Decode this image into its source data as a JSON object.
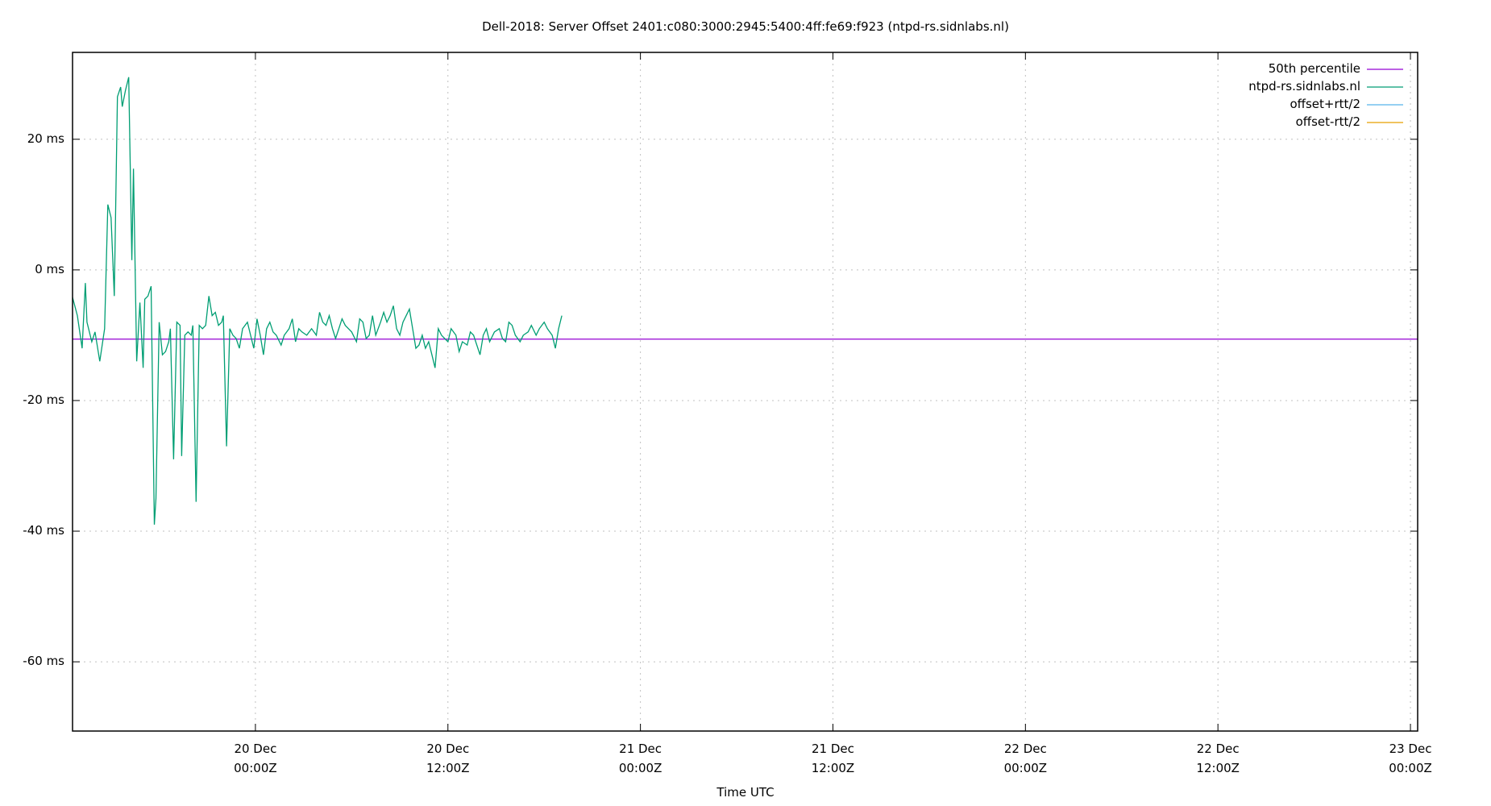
{
  "chart_data": {
    "type": "line",
    "title": "Dell-2018: Server Offset 2401:c080:3000:2945:5400:4ff:fe69:f923 (ntpd-rs.sidnlabs.nl)",
    "xlabel": "Time UTC",
    "ylabel": "",
    "ylim": [
      -70.6,
      33.3
    ],
    "xlim_hours_from_20dec0000": [
      -11.4,
      72.45
    ],
    "grid": true,
    "legend_position": "top-right",
    "yticks": [
      {
        "value": 20,
        "label": "20 ms"
      },
      {
        "value": 0,
        "label": "0 ms"
      },
      {
        "value": -20,
        "label": "-20 ms"
      },
      {
        "value": -40,
        "label": "-40 ms"
      },
      {
        "value": -60,
        "label": "-60 ms"
      }
    ],
    "xticks": [
      {
        "hours": 0,
        "line1": "20 Dec",
        "line2": "00:00Z"
      },
      {
        "hours": 12,
        "line1": "20 Dec",
        "line2": "12:00Z"
      },
      {
        "hours": 24,
        "line1": "21 Dec",
        "line2": "00:00Z"
      },
      {
        "hours": 36,
        "line1": "21 Dec",
        "line2": "12:00Z"
      },
      {
        "hours": 48,
        "line1": "22 Dec",
        "line2": "00:00Z"
      },
      {
        "hours": 60,
        "line1": "22 Dec",
        "line2": "12:00Z"
      },
      {
        "hours": 72,
        "line1": "23 Dec",
        "line2": "00:00Z"
      }
    ],
    "series": [
      {
        "name": "50th percentile",
        "color": "#9400d3",
        "constant": -10.6
      },
      {
        "name": "ntpd-rs.sidnlabs.nl",
        "color": "#009e73",
        "points": [
          [
            -11.4,
            -4.2
          ],
          [
            -11.1,
            -7
          ],
          [
            -10.8,
            -12
          ],
          [
            -10.6,
            -2
          ],
          [
            -10.5,
            -8
          ],
          [
            -10.2,
            -11
          ],
          [
            -10.0,
            -9.5
          ],
          [
            -9.7,
            -14
          ],
          [
            -9.4,
            -9
          ],
          [
            -9.2,
            10
          ],
          [
            -9.0,
            8
          ],
          [
            -8.8,
            -4
          ],
          [
            -8.6,
            26.5
          ],
          [
            -8.4,
            28
          ],
          [
            -8.3,
            25
          ],
          [
            -8.1,
            27.5
          ],
          [
            -7.9,
            29.5
          ],
          [
            -7.7,
            1.5
          ],
          [
            -7.6,
            15.5
          ],
          [
            -7.4,
            -14
          ],
          [
            -7.2,
            -5
          ],
          [
            -7.0,
            -15
          ],
          [
            -6.9,
            -4.5
          ],
          [
            -6.7,
            -4
          ],
          [
            -6.5,
            -2.5
          ],
          [
            -6.3,
            -39
          ],
          [
            -6.2,
            -35
          ],
          [
            -6.0,
            -8
          ],
          [
            -5.8,
            -13
          ],
          [
            -5.6,
            -12.5
          ],
          [
            -5.4,
            -11
          ],
          [
            -5.3,
            -9
          ],
          [
            -5.1,
            -29
          ],
          [
            -4.9,
            -8
          ],
          [
            -4.7,
            -8.5
          ],
          [
            -4.6,
            -28.5
          ],
          [
            -4.4,
            -10
          ],
          [
            -4.2,
            -9.5
          ],
          [
            -4.0,
            -10
          ],
          [
            -3.9,
            -8.5
          ],
          [
            -3.7,
            -35.5
          ],
          [
            -3.5,
            -8.5
          ],
          [
            -3.3,
            -9
          ],
          [
            -3.1,
            -8.5
          ],
          [
            -2.9,
            -4
          ],
          [
            -2.7,
            -7
          ],
          [
            -2.5,
            -6.5
          ],
          [
            -2.3,
            -8.5
          ],
          [
            -2.1,
            -8
          ],
          [
            -2.0,
            -7
          ],
          [
            -1.8,
            -27
          ],
          [
            -1.6,
            -9
          ],
          [
            -1.4,
            -10
          ],
          [
            -1.2,
            -10.5
          ],
          [
            -1.0,
            -12
          ],
          [
            -0.8,
            -9
          ],
          [
            -0.5,
            -8
          ],
          [
            -0.3,
            -10
          ],
          [
            -0.1,
            -12
          ],
          [
            0.1,
            -7.5
          ],
          [
            0.3,
            -10
          ],
          [
            0.5,
            -13
          ],
          [
            0.7,
            -9
          ],
          [
            0.9,
            -8
          ],
          [
            1.1,
            -9.5
          ],
          [
            1.3,
            -10
          ],
          [
            1.6,
            -11.5
          ],
          [
            1.8,
            -10
          ],
          [
            2.1,
            -9
          ],
          [
            2.3,
            -7.5
          ],
          [
            2.5,
            -11
          ],
          [
            2.7,
            -9
          ],
          [
            2.9,
            -9.5
          ],
          [
            3.2,
            -10
          ],
          [
            3.5,
            -9
          ],
          [
            3.8,
            -10
          ],
          [
            4.0,
            -6.5
          ],
          [
            4.2,
            -8
          ],
          [
            4.4,
            -8.5
          ],
          [
            4.6,
            -7
          ],
          [
            4.8,
            -9
          ],
          [
            5.0,
            -10.5
          ],
          [
            5.2,
            -9
          ],
          [
            5.4,
            -7.5
          ],
          [
            5.6,
            -8.5
          ],
          [
            5.8,
            -9
          ],
          [
            6.0,
            -9.5
          ],
          [
            6.3,
            -11
          ],
          [
            6.5,
            -7.5
          ],
          [
            6.7,
            -8
          ],
          [
            6.9,
            -10.5
          ],
          [
            7.1,
            -10
          ],
          [
            7.3,
            -7
          ],
          [
            7.5,
            -10
          ],
          [
            7.8,
            -8
          ],
          [
            8.0,
            -6.5
          ],
          [
            8.2,
            -8
          ],
          [
            8.4,
            -7
          ],
          [
            8.6,
            -5.5
          ],
          [
            8.8,
            -9
          ],
          [
            9.0,
            -10
          ],
          [
            9.2,
            -8
          ],
          [
            9.4,
            -7
          ],
          [
            9.6,
            -6
          ],
          [
            9.8,
            -9
          ],
          [
            10.0,
            -12
          ],
          [
            10.2,
            -11.5
          ],
          [
            10.4,
            -10
          ],
          [
            10.6,
            -12
          ],
          [
            10.8,
            -11
          ],
          [
            11.0,
            -13
          ],
          [
            11.2,
            -15
          ],
          [
            11.4,
            -9
          ],
          [
            11.6,
            -10
          ],
          [
            11.8,
            -10.5
          ],
          [
            12.0,
            -11
          ],
          [
            12.2,
            -9
          ],
          [
            12.5,
            -10
          ],
          [
            12.7,
            -12.5
          ],
          [
            12.9,
            -11
          ],
          [
            13.2,
            -11.5
          ],
          [
            13.4,
            -9.5
          ],
          [
            13.6,
            -10
          ],
          [
            14.0,
            -13
          ],
          [
            14.2,
            -10
          ],
          [
            14.4,
            -9
          ],
          [
            14.6,
            -11
          ],
          [
            14.9,
            -9.5
          ],
          [
            15.2,
            -9
          ],
          [
            15.4,
            -10.5
          ],
          [
            15.6,
            -11
          ],
          [
            15.8,
            -8
          ],
          [
            16.0,
            -8.5
          ],
          [
            16.2,
            -10
          ],
          [
            16.5,
            -11
          ],
          [
            16.7,
            -10
          ],
          [
            17.0,
            -9.5
          ],
          [
            17.2,
            -8.5
          ],
          [
            17.5,
            -10
          ],
          [
            17.7,
            -9
          ],
          [
            18.0,
            -8
          ],
          [
            18.2,
            -9
          ],
          [
            18.5,
            -10
          ],
          [
            18.7,
            -12
          ],
          [
            18.9,
            -9
          ],
          [
            19.1,
            -7
          ]
        ]
      },
      {
        "name": "offset+rtt/2",
        "color": "#56b4e9"
      },
      {
        "name": "offset-rtt/2",
        "color": "#e69f00"
      }
    ]
  }
}
